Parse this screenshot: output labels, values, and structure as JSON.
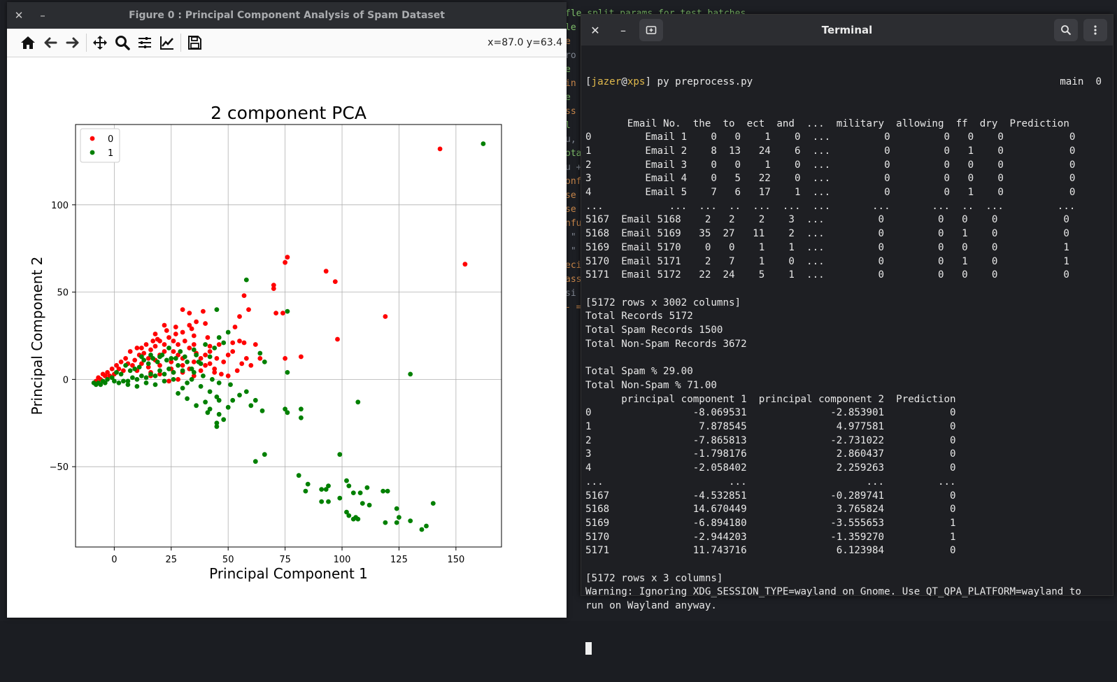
{
  "background": {
    "fragments": [
      {
        "text": "fle split params for test batches",
        "cls": "c-green"
      },
      {
        "text": "le",
        "cls": "c-green"
      },
      {
        "text": "e",
        "cls": "c-orange"
      },
      {
        "text": "ro",
        "cls": ""
      },
      {
        "text": "e",
        "cls": "c-green"
      },
      {
        "text": "in",
        "cls": "c-orange"
      },
      {
        "text": "e",
        "cls": "c-green"
      },
      {
        "text": "ss",
        "cls": "c-orange"
      },
      {
        "text": "l",
        "cls": "c-green"
      },
      {
        "text": "u,",
        "cls": ""
      },
      {
        "text": "ota",
        "cls": "c-green"
      },
      {
        "text": "u +",
        "cls": ""
      },
      {
        "text": "onf",
        "cls": "c-orange"
      },
      {
        "text": "se",
        "cls": "c-orange"
      },
      {
        "text": "se",
        "cls": "c-orange"
      },
      {
        "text": "nfu",
        "cls": "c-orange"
      },
      {
        "text": " \"",
        "cls": ""
      },
      {
        "text": " \"",
        "cls": ""
      },
      {
        "text": "eci",
        "cls": "c-orange"
      },
      {
        "text": "ass",
        "cls": "c-orange"
      },
      {
        "text": "si",
        "cls": ""
      },
      {
        "text": "- =",
        "cls": "c-orange"
      }
    ]
  },
  "figure": {
    "title": "Figure 0 : Principal Component Analysis of Spam Dataset",
    "close_glyph": "✕",
    "minimize_glyph": "–",
    "coordinate_readout": "x=87.0 y=63.4",
    "tools": [
      "home-icon",
      "back-arrow-icon",
      "forward-arrow-icon",
      "pan-icon",
      "zoom-icon",
      "subplots-icon",
      "edit-axes-icon",
      "save-icon"
    ]
  },
  "chart_data": {
    "type": "scatter",
    "title": "2 component PCA",
    "xlabel": "Principal Component 1",
    "ylabel": "Principal Component 2",
    "xlim": [
      -17,
      170
    ],
    "ylim": [
      -96,
      146
    ],
    "xticks": [
      0,
      25,
      50,
      75,
      100,
      125,
      150
    ],
    "yticks": [
      -50,
      0,
      50,
      100
    ],
    "xticklabels": [
      "0",
      "25",
      "50",
      "75",
      "100",
      "125",
      "150"
    ],
    "yticklabels": [
      "−50",
      "0",
      "50",
      "100"
    ],
    "grid": true,
    "legend_position": "top-left",
    "series": [
      {
        "name": "0",
        "color": "#ff0000",
        "points": [
          [
            143,
            132
          ],
          [
            154,
            66
          ],
          [
            119,
            36
          ],
          [
            98,
            23
          ],
          [
            93,
            62
          ],
          [
            97,
            56
          ],
          [
            76,
            70
          ],
          [
            75,
            67
          ],
          [
            70,
            54
          ],
          [
            70,
            52
          ],
          [
            71,
            38
          ],
          [
            74,
            38
          ],
          [
            57,
            48
          ],
          [
            59,
            40
          ],
          [
            55,
            36
          ],
          [
            53,
            30
          ],
          [
            30,
            40
          ],
          [
            33,
            38
          ],
          [
            39,
            39
          ],
          [
            40,
            32
          ],
          [
            33,
            31
          ],
          [
            22,
            31
          ],
          [
            27,
            26
          ],
          [
            35,
            25
          ],
          [
            41,
            24
          ],
          [
            42,
            19
          ],
          [
            46,
            20
          ],
          [
            52,
            21
          ],
          [
            55,
            22
          ],
          [
            57,
            21
          ],
          [
            50,
            14
          ],
          [
            62,
            20
          ],
          [
            82,
            13
          ],
          [
            75,
            12
          ],
          [
            58,
            12
          ],
          [
            56,
            9
          ],
          [
            54,
            5
          ],
          [
            50,
            2
          ],
          [
            47,
            3
          ],
          [
            44,
            6
          ],
          [
            40,
            8
          ],
          [
            38,
            12
          ],
          [
            36,
            15
          ],
          [
            33,
            18
          ],
          [
            31,
            22
          ],
          [
            28,
            20
          ],
          [
            26,
            16
          ],
          [
            24,
            24
          ],
          [
            20,
            22
          ],
          [
            18,
            19
          ],
          [
            16,
            17
          ],
          [
            13,
            15
          ],
          [
            10,
            18
          ],
          [
            7,
            16
          ],
          [
            5,
            12
          ],
          [
            3,
            10
          ],
          [
            1,
            8
          ],
          [
            -1,
            6
          ],
          [
            -3,
            4
          ],
          [
            -5,
            3
          ],
          [
            -7,
            1
          ],
          [
            15,
            12
          ],
          [
            20,
            14
          ],
          [
            25,
            10
          ],
          [
            30,
            12
          ],
          [
            35,
            10
          ],
          [
            40,
            14
          ],
          [
            45,
            12
          ],
          [
            35,
            20
          ],
          [
            28,
            14
          ],
          [
            22,
            16
          ],
          [
            18,
            11
          ],
          [
            12,
            9
          ],
          [
            8,
            8
          ],
          [
            4,
            5
          ],
          [
            0,
            3
          ],
          [
            -2,
            2
          ],
          [
            -6,
            0
          ],
          [
            -8,
            -1
          ],
          [
            10,
            5
          ],
          [
            15,
            7
          ],
          [
            20,
            8
          ],
          [
            25,
            6
          ],
          [
            30,
            4
          ],
          [
            35,
            2
          ],
          [
            38,
            5
          ],
          [
            42,
            9
          ],
          [
            14,
            20
          ],
          [
            18,
            26
          ],
          [
            22,
            20
          ],
          [
            26,
            22
          ],
          [
            30,
            27
          ],
          [
            34,
            29
          ],
          [
            36,
            33
          ],
          [
            27,
            30
          ],
          [
            23,
            28
          ],
          [
            19,
            23
          ],
          [
            11,
            14
          ],
          [
            9,
            11
          ],
          [
            6,
            9
          ],
          [
            2,
            6
          ],
          [
            -4,
            2
          ],
          [
            42,
            16
          ],
          [
            48,
            10
          ],
          [
            52,
            16
          ],
          [
            60,
            8
          ],
          [
            64,
            12
          ],
          [
            28,
            0
          ],
          [
            24,
            -1
          ],
          [
            20,
            3
          ],
          [
            16,
            4
          ],
          [
            30,
            8
          ],
          [
            44,
            4
          ],
          [
            17,
            22
          ],
          [
            12,
            18
          ],
          [
            16,
            2
          ],
          [
            26,
            4
          ],
          [
            33,
            6
          ]
        ]
      },
      {
        "name": "1",
        "color": "#008000",
        "points": [
          [
            162,
            135
          ],
          [
            58,
            57
          ],
          [
            45,
            40
          ],
          [
            76,
            39
          ],
          [
            64,
            15
          ],
          [
            66,
            10
          ],
          [
            76,
            4
          ],
          [
            50,
            27
          ],
          [
            46,
            24
          ],
          [
            40,
            20
          ],
          [
            36,
            14
          ],
          [
            32,
            10
          ],
          [
            28,
            8
          ],
          [
            24,
            6
          ],
          [
            20,
            5
          ],
          [
            16,
            3
          ],
          [
            12,
            2
          ],
          [
            8,
            1
          ],
          [
            4,
            -1
          ],
          [
            0,
            -1
          ],
          [
            -4,
            -2
          ],
          [
            -8,
            -3
          ],
          [
            -9,
            -2
          ],
          [
            -6,
            -3
          ],
          [
            2,
            -2
          ],
          [
            6,
            -1
          ],
          [
            10,
            0
          ],
          [
            14,
            1
          ],
          [
            18,
            2
          ],
          [
            22,
            3
          ],
          [
            26,
            4
          ],
          [
            30,
            5
          ],
          [
            34,
            6
          ],
          [
            38,
            9
          ],
          [
            42,
            13
          ],
          [
            44,
            18
          ],
          [
            48,
            21
          ],
          [
            35,
            17
          ],
          [
            31,
            13
          ],
          [
            27,
            12
          ],
          [
            23,
            11
          ],
          [
            19,
            10
          ],
          [
            15,
            9
          ],
          [
            11,
            7
          ],
          [
            7,
            5
          ],
          [
            3,
            3
          ],
          [
            -1,
            1
          ],
          [
            -5,
            -1
          ],
          [
            30,
            -5
          ],
          [
            34,
            0
          ],
          [
            38,
            -4
          ],
          [
            42,
            -7
          ],
          [
            45,
            -10
          ],
          [
            46,
            -12
          ],
          [
            40,
            -13
          ],
          [
            36,
            -15
          ],
          [
            32,
            -11
          ],
          [
            28,
            -8
          ],
          [
            42,
            -17
          ],
          [
            46,
            -20
          ],
          [
            41,
            -19
          ],
          [
            50,
            -16
          ],
          [
            52,
            -12
          ],
          [
            55,
            -9
          ],
          [
            51,
            -3
          ],
          [
            46,
            -2
          ],
          [
            58,
            -7
          ],
          [
            62,
            -12
          ],
          [
            65,
            -18
          ],
          [
            60,
            -15
          ],
          [
            48,
            -23
          ],
          [
            45,
            -27
          ],
          [
            45,
            -25
          ],
          [
            75,
            -17
          ],
          [
            76,
            -19
          ],
          [
            82,
            -17
          ],
          [
            82,
            -22
          ],
          [
            107,
            -13
          ],
          [
            130,
            3
          ],
          [
            62,
            -47
          ],
          [
            66,
            -43
          ],
          [
            99,
            -43
          ],
          [
            81,
            -55
          ],
          [
            85,
            -60
          ],
          [
            84,
            -64
          ],
          [
            91,
            -63
          ],
          [
            93,
            -63
          ],
          [
            94,
            -61
          ],
          [
            91,
            -70
          ],
          [
            94,
            -70
          ],
          [
            99,
            -68
          ],
          [
            102,
            -58
          ],
          [
            103,
            -61
          ],
          [
            105,
            -65
          ],
          [
            108,
            -65
          ],
          [
            111,
            -62
          ],
          [
            109,
            -71
          ],
          [
            112,
            -72
          ],
          [
            102,
            -76
          ],
          [
            103,
            -78
          ],
          [
            105,
            -80
          ],
          [
            106,
            -79
          ],
          [
            107,
            -80
          ],
          [
            118,
            -64
          ],
          [
            120,
            -64
          ],
          [
            124,
            -74
          ],
          [
            125,
            -79
          ],
          [
            119,
            -82
          ],
          [
            124,
            -82
          ],
          [
            130,
            -81
          ],
          [
            135,
            -86
          ],
          [
            137,
            -84
          ],
          [
            140,
            -71
          ],
          [
            25,
            12
          ],
          [
            21,
            14
          ],
          [
            17,
            12
          ],
          [
            13,
            11
          ],
          [
            9,
            6
          ],
          [
            5,
            8
          ],
          [
            1,
            4
          ],
          [
            -3,
            0
          ],
          [
            -7,
            -2
          ],
          [
            35,
            4
          ],
          [
            39,
            2
          ],
          [
            43,
            0
          ],
          [
            32,
            -2
          ],
          [
            26,
            0
          ],
          [
            22,
            -1
          ],
          [
            18,
            -3
          ],
          [
            14,
            -2
          ],
          [
            10,
            -4
          ],
          [
            6,
            -3
          ],
          [
            37,
            10
          ],
          [
            29,
            16
          ],
          [
            24,
            18
          ],
          [
            20,
            13
          ],
          [
            16,
            14
          ],
          [
            12,
            13
          ]
        ]
      }
    ]
  },
  "terminal": {
    "title": "Terminal",
    "close_glyph": "✕",
    "minimize_glyph": "–",
    "prompt": {
      "open": "[",
      "user": "jazer",
      "at": "@",
      "host": "xps",
      "close": "]",
      "command": " py preprocess.py",
      "branch": "main  0"
    },
    "output_lines": [
      "       Email No.  the  to  ect  and  ...  military  allowing  ff  dry  Prediction",
      "0         Email 1    0   0    1    0  ...         0         0   0    0           0",
      "1         Email 2    8  13   24    6  ...         0         0   1    0           0",
      "2         Email 3    0   0    1    0  ...         0         0   0    0           0",
      "3         Email 4    0   5   22    0  ...         0         0   0    0           0",
      "4         Email 5    7   6   17    1  ...         0         0   1    0           0",
      "...           ...  ...  ..  ...  ...  ...       ...       ...  ..  ...         ...",
      "5167  Email 5168    2   2    2    3  ...         0         0   0    0           0",
      "5168  Email 5169   35  27   11    2  ...         0         0   1    0           0",
      "5169  Email 5170    0   0    1    1  ...         0         0   0    0           1",
      "5170  Email 5171    2   7    1    0  ...         0         0   1    0           1",
      "5171  Email 5172   22  24    5    1  ...         0         0   0    0           0",
      "",
      "[5172 rows x 3002 columns]",
      "Total Records 5172",
      "Total Spam Records 1500",
      "Total Non-Spam Records 3672",
      "",
      "Total Spam % 29.00",
      "Total Non-Spam % 71.00",
      "      principal component 1  principal component 2  Prediction",
      "0                 -8.069531              -2.853901           0",
      "1                  7.878545               4.977581           0",
      "2                 -7.865813              -2.731022           0",
      "3                 -1.798176               2.860437           0",
      "4                 -2.058402               2.259263           0",
      "...                     ...                    ...         ...",
      "5167              -4.532851              -0.289741           0",
      "5168              14.670449               3.765824           0",
      "5169              -6.894180              -3.555653           1",
      "5170              -2.944203              -1.359270           1",
      "5171              11.743716               6.123984           0",
      "",
      "[5172 rows x 3 columns]",
      "Warning: Ignoring XDG_SESSION_TYPE=wayland on Gnome. Use QT_QPA_PLATFORM=wayland to",
      "run on Wayland anyway."
    ]
  }
}
